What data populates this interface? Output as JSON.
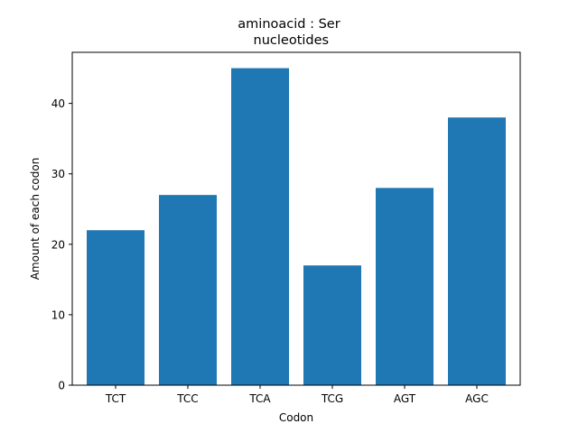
{
  "chart_data": {
    "type": "bar",
    "title": "aminoacid : Ser",
    "subtitle": " nucleotides",
    "xlabel": "Codon",
    "ylabel": "Amount of each codon",
    "categories": [
      "TCT",
      "TCC",
      "TCA",
      "TCG",
      "AGT",
      "AGC"
    ],
    "values": [
      22,
      27,
      45,
      17,
      28,
      38
    ],
    "ylim": [
      0,
      47.25
    ],
    "yticks": [
      0,
      10,
      20,
      30,
      40
    ],
    "grid": false,
    "legend": "none",
    "bar_color": "#1f77b4"
  }
}
